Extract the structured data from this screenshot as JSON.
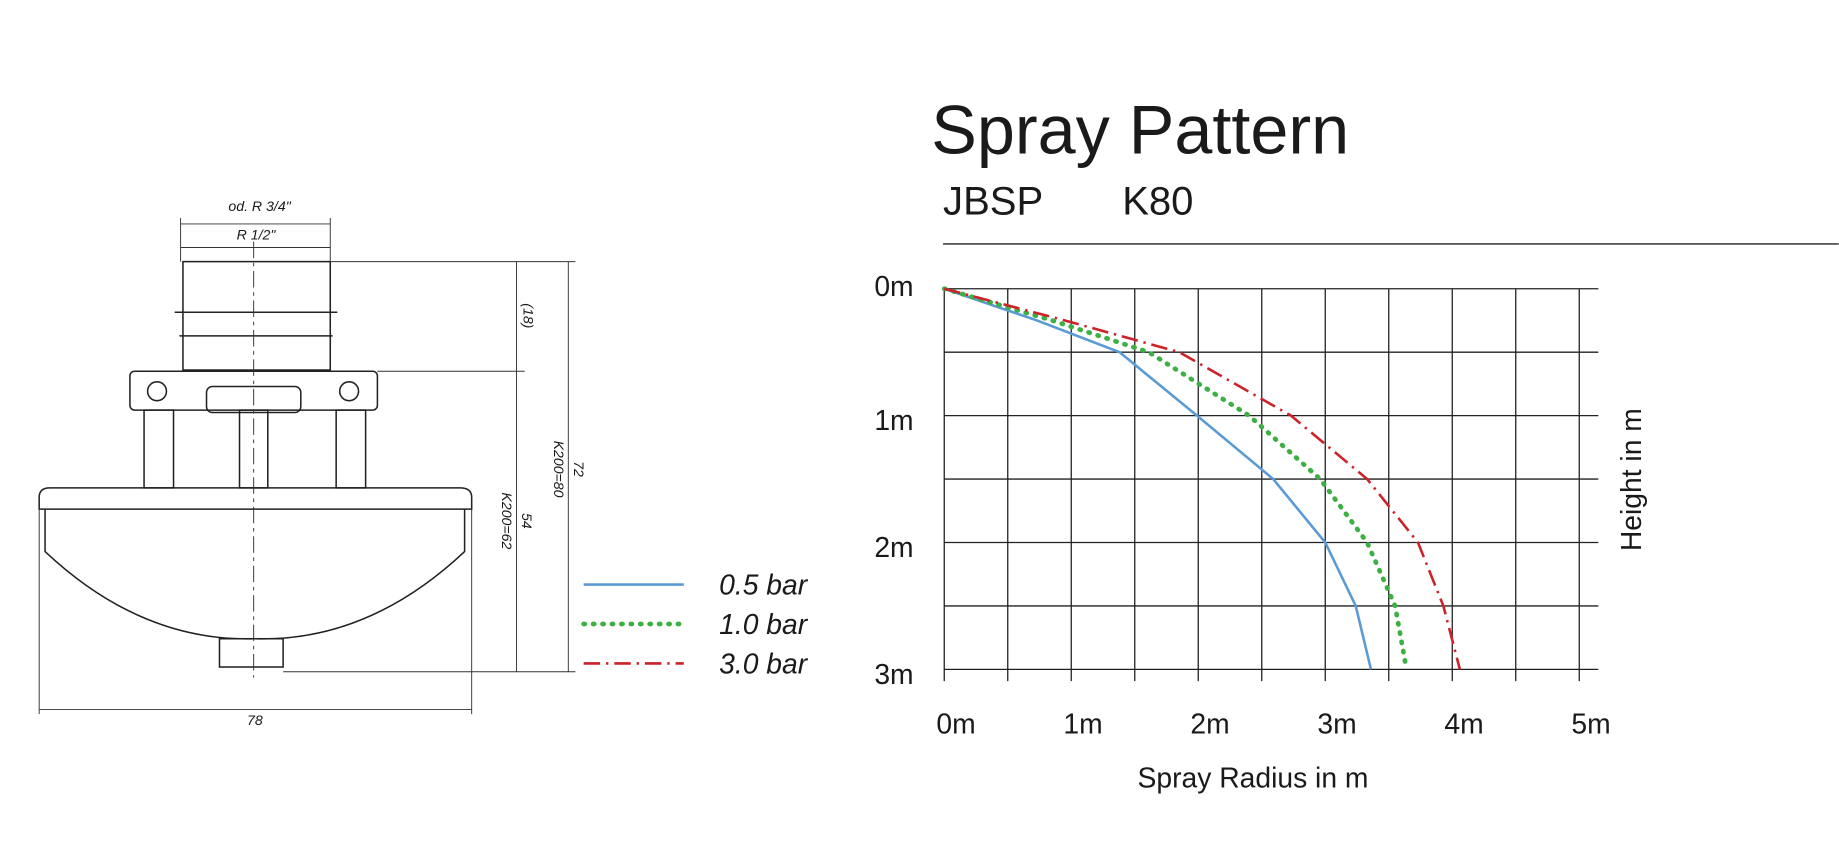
{
  "chart_data": {
    "type": "line",
    "title": "Spray Pattern",
    "subtitle": [
      "JBSP",
      "K80"
    ],
    "x_label": "Spray Radius in m",
    "y_label": "Height in m",
    "xlim": [
      0,
      5.15
    ],
    "ylim": [
      0,
      3
    ],
    "y_inverted": true,
    "grid": true,
    "xticks": [
      {
        "value": 0,
        "label": "0m"
      },
      {
        "value": 1,
        "label": "1m"
      },
      {
        "value": 2,
        "label": "2m"
      },
      {
        "value": 3,
        "label": "3m"
      },
      {
        "value": 4,
        "label": "4m"
      },
      {
        "value": 5,
        "label": "5m"
      }
    ],
    "yticks": [
      {
        "value": 0,
        "label": "0m"
      },
      {
        "value": 1,
        "label": "1m"
      },
      {
        "value": 2,
        "label": "2m"
      },
      {
        "value": 3,
        "label": "3m"
      }
    ],
    "xminorticks": [
      0.5,
      1.5,
      2.5,
      3.5,
      4.5
    ],
    "yminorticks": [
      0.5,
      1.5,
      2.5
    ],
    "series": [
      {
        "name": "0.5 bar",
        "color": "#5b9bd5",
        "dash": "solid",
        "x": [
          0,
          0.73,
          1.38,
          1.99,
          2.59,
          3.0,
          3.24,
          3.36
        ],
        "values": [
          0,
          0.25,
          0.5,
          1,
          1.5,
          2,
          2.5,
          3
        ]
      },
      {
        "name": "1.0 bar",
        "color": "#3cb043",
        "dash": "dotted",
        "x": [
          0,
          0.85,
          1.61,
          2.4,
          2.96,
          3.33,
          3.55,
          3.64
        ],
        "values": [
          0,
          0.25,
          0.5,
          1,
          1.5,
          2,
          2.5,
          3
        ]
      },
      {
        "name": "3.0 bar",
        "color": "#cc2229",
        "dash": "dashdot",
        "x": [
          0,
          0.95,
          1.85,
          2.73,
          3.33,
          3.73,
          3.93,
          4.06
        ],
        "values": [
          0,
          0.25,
          0.5,
          1,
          1.5,
          2,
          2.5,
          3
        ]
      }
    ]
  },
  "drawing": {
    "labels": [
      "od. R 3/4\"",
      "R 1/2\"",
      "(18)",
      "72",
      "K200=80",
      "54",
      "K200=62",
      "78"
    ]
  }
}
